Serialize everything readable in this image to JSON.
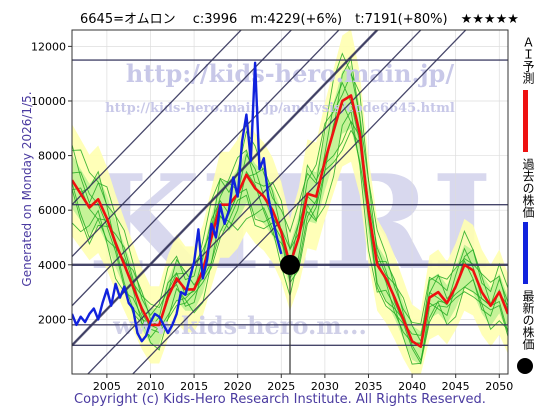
{
  "header": {
    "text": "6645=オムロン　 c:3996　m:4229(+6%)　t:7191(+80%)　★★★★★"
  },
  "generated_text": "Generated on Monday 2026/1/5.",
  "copyright_text": "Copyright (c) Kids-Hero Research Institute. All Rights Reserved.",
  "watermarks": {
    "url1": "http://kids-hero.main.jp/",
    "url2": "http://kids-hero.main.jp/analysis/code6645.html",
    "big": "KHRI",
    "bottom": "www.kids-hero.m..."
  },
  "legend": {
    "ai": "ＡＩ予測",
    "past": "過去の株価",
    "latest": "最新の株価"
  },
  "colors": {
    "ai_line": "#ee1111",
    "past_line": "#1122dd",
    "latest_marker": "#000000",
    "band_fill": "#ffffb0",
    "band_fill2": "#b8f090",
    "green_lines": "#22aa22",
    "channel_lines": "#33335a"
  },
  "chart_data": {
    "type": "line",
    "title": "6645=オムロン",
    "xlim": [
      2001,
      2051
    ],
    "ylim": [
      0,
      12600
    ],
    "xticks": [
      2005,
      2010,
      2015,
      2020,
      2025,
      2030,
      2035,
      2040,
      2045,
      2050
    ],
    "yticks": [
      2000,
      4000,
      6000,
      8000,
      10000,
      12000
    ],
    "latest_price": {
      "x": 2026.0,
      "y": 3996
    },
    "horizontal_lines": [
      11500,
      6200,
      4000,
      1800,
      1050
    ],
    "series": [
      {
        "name": "過去の株価",
        "x": [
          2001.0,
          2001.5,
          2002.0,
          2002.5,
          2003.0,
          2003.5,
          2004.0,
          2004.5,
          2005.0,
          2005.5,
          2006.0,
          2006.5,
          2007.0,
          2007.5,
          2008.0,
          2008.5,
          2009.0,
          2009.5,
          2010.0,
          2010.5,
          2011.0,
          2011.5,
          2012.0,
          2012.5,
          2013.0,
          2013.5,
          2014.0,
          2014.5,
          2015.0,
          2015.5,
          2016.0,
          2016.5,
          2017.0,
          2017.5,
          2018.0,
          2018.5,
          2019.0,
          2019.5,
          2020.0,
          2020.5,
          2021.0,
          2021.5,
          2022.0,
          2022.5,
          2023.0,
          2023.5,
          2024.0,
          2024.5,
          2025.0
        ],
        "values": [
          2200,
          1800,
          2100,
          1900,
          2200,
          2400,
          2000,
          2600,
          3100,
          2500,
          3300,
          2800,
          3200,
          2600,
          2400,
          1500,
          1200,
          1400,
          1900,
          2200,
          2100,
          1800,
          1500,
          1800,
          2200,
          3000,
          2900,
          3500,
          4100,
          5300,
          3500,
          4200,
          5500,
          5000,
          6200,
          5500,
          6000,
          7200,
          6500,
          8500,
          9500,
          7800,
          11400,
          7500,
          7900,
          6500,
          5700,
          5000,
          4400
        ]
      },
      {
        "name": "ＡＩ予測",
        "x": [
          2001.0,
          2002.0,
          2003.0,
          2004.0,
          2005.0,
          2006.0,
          2007.0,
          2008.0,
          2009.0,
          2010.0,
          2011.0,
          2012.0,
          2013.0,
          2014.0,
          2015.0,
          2016.0,
          2017.0,
          2018.0,
          2019.0,
          2020.0,
          2021.0,
          2022.0,
          2023.0,
          2024.0,
          2025.0,
          2026.0,
          2027.0,
          2028.0,
          2029.0,
          2030.0,
          2031.0,
          2032.0,
          2033.0,
          2034.0,
          2035.0,
          2036.0,
          2037.0,
          2038.0,
          2039.0,
          2040.0,
          2041.0,
          2042.0,
          2043.0,
          2044.0,
          2045.0,
          2046.0,
          2047.0,
          2048.0,
          2049.0,
          2050.0,
          2051.0
        ],
        "values": [
          7100,
          6600,
          6100,
          6400,
          5700,
          4800,
          4000,
          3200,
          2400,
          1800,
          1800,
          2800,
          3500,
          3100,
          3100,
          3800,
          5000,
          6200,
          6200,
          6600,
          7300,
          6800,
          6500,
          6000,
          5200,
          4000,
          5000,
          6600,
          6500,
          7800,
          8900,
          10000,
          10200,
          8800,
          6000,
          4000,
          3500,
          2800,
          2000,
          1200,
          1000,
          2800,
          3000,
          2600,
          3200,
          4000,
          3800,
          3000,
          2500,
          3000,
          2200
        ]
      }
    ]
  }
}
